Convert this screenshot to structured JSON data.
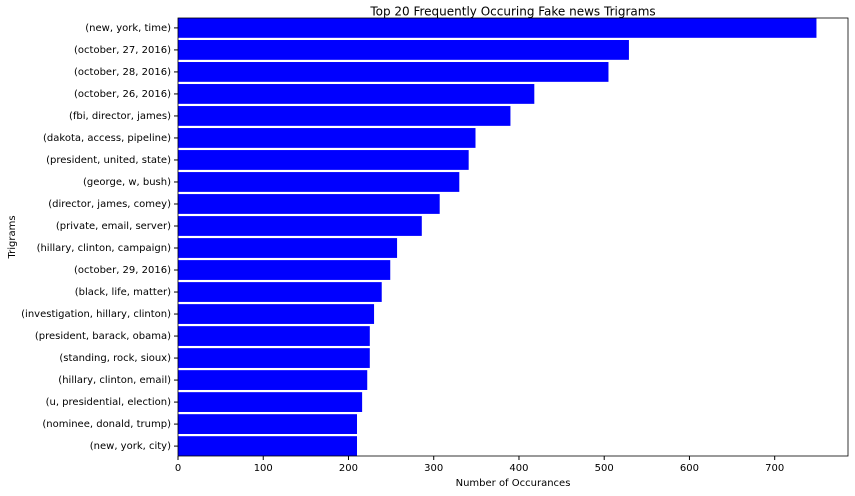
{
  "chart_data": {
    "type": "barh",
    "title": "Top 20 Frequently Occuring Fake news Trigrams",
    "xlabel": "Number of Occurances",
    "ylabel": "Trigrams",
    "color": "#0000ff",
    "categories": [
      "(new, york, time)",
      "(october, 27, 2016)",
      "(october, 28, 2016)",
      "(october, 26, 2016)",
      "(fbi, director, james)",
      "(dakota, access, pipeline)",
      "(president, united, state)",
      "(george, w, bush)",
      "(director, james, comey)",
      "(private, email, server)",
      "(hillary, clinton, campaign)",
      "(october, 29, 2016)",
      "(black, life, matter)",
      "(investigation, hillary, clinton)",
      "(president, barack, obama)",
      "(standing, rock, sioux)",
      "(hillary, clinton, email)",
      "(u, presidential, election)",
      "(nominee, donald, trump)",
      "(new, york, city)"
    ],
    "values": [
      749,
      529,
      505,
      418,
      390,
      349,
      341,
      330,
      307,
      286,
      257,
      249,
      239,
      230,
      225,
      225,
      222,
      216,
      210,
      210
    ],
    "xlim": [
      0,
      786
    ],
    "xticks": [
      0,
      100,
      200,
      300,
      400,
      500,
      600,
      700
    ]
  }
}
